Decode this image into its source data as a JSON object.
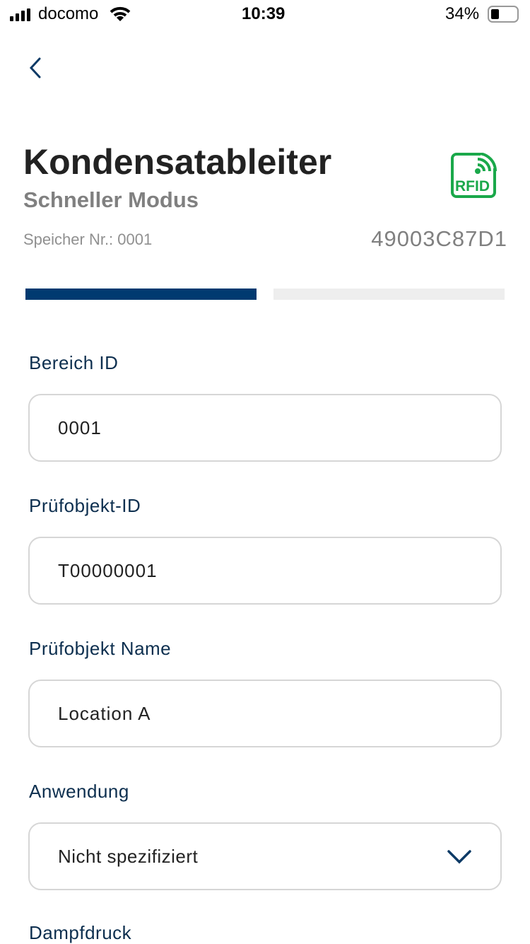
{
  "status_bar": {
    "carrier": "docomo",
    "time": "10:39",
    "battery": "34%",
    "battery_level": 0.34
  },
  "header": {
    "title": "Kondensatableiter",
    "subtitle": "Schneller Modus",
    "memory_label": "Speicher Nr.: 0001",
    "tag_id": "49003C87D1",
    "rfid_label": "RFID",
    "rfid_color": "#1aa84a"
  },
  "progress": {
    "step": 1,
    "total_steps": 2,
    "active_color": "#003a70"
  },
  "form": {
    "fields": [
      {
        "label": "Bereich ID",
        "value": "0001"
      },
      {
        "label": "Prüfobjekt-ID",
        "value": "T00000001"
      },
      {
        "label": "Prüfobjekt Name",
        "value": "Location A"
      },
      {
        "label": "Anwendung",
        "value": "Nicht spezifiziert"
      },
      {
        "label": "Dampfdruck"
      }
    ]
  }
}
